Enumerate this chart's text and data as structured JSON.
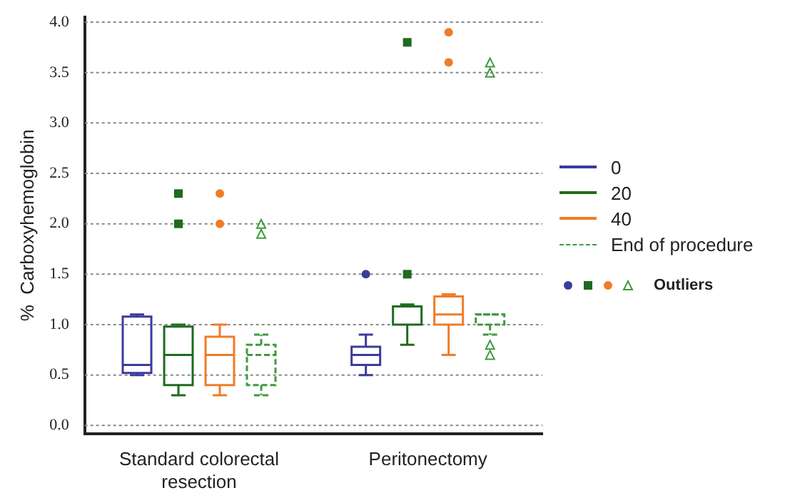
{
  "chart_data": {
    "type": "box",
    "ylabel": "%  Carboxyhemoglobin",
    "categories": [
      "Standard colorectal resection",
      "Peritonectomy"
    ],
    "ylim": [
      -0.08,
      4.05
    ],
    "yticks": [
      {
        "value": 0,
        "label": "0.0"
      },
      {
        "value": 0.5,
        "label": "0.5"
      },
      {
        "value": 1,
        "label": "1.0"
      },
      {
        "value": 1.5,
        "label": "1.5"
      },
      {
        "value": 2,
        "label": "2.0"
      },
      {
        "value": 2.5,
        "label": "2.5"
      },
      {
        "value": 3,
        "label": "3.0"
      },
      {
        "value": 3.5,
        "label": "3.5"
      },
      {
        "value": 4,
        "label": "4.0"
      }
    ],
    "grid": "y",
    "legend": "right",
    "annotations": [
      "Outliers"
    ],
    "series": [
      {
        "name": "0",
        "color": "#3b3b9e",
        "line_style": "solid",
        "marker": "circle",
        "boxes": [
          {
            "low": 0.5,
            "q1": 0.52,
            "median": 0.6,
            "q3": 1.08,
            "high": 1.1
          },
          {
            "low": 0.5,
            "q1": 0.6,
            "median": 0.7,
            "q3": 0.78,
            "high": 0.9,
            "outliers": [
              1.5
            ]
          }
        ]
      },
      {
        "name": "20",
        "color": "#1e6b1e",
        "line_style": "solid",
        "marker": "square",
        "boxes": [
          {
            "low": 0.3,
            "q1": 0.4,
            "median": 0.7,
            "q3": 0.98,
            "high": 1.0,
            "outliers": [
              2.3,
              2.0
            ]
          },
          {
            "low": 0.8,
            "q1": 1.0,
            "median": 1.18,
            "q3": 1.18,
            "high": 1.2,
            "outliers": [
              3.8,
              1.5
            ]
          }
        ]
      },
      {
        "name": "40",
        "color": "#f07c28",
        "line_style": "solid",
        "marker": "circle",
        "boxes": [
          {
            "low": 0.3,
            "q1": 0.4,
            "median": 0.7,
            "q3": 0.88,
            "high": 1.0,
            "outliers": [
              2.3,
              2.0
            ]
          },
          {
            "low": 0.7,
            "q1": 1.0,
            "median": 1.1,
            "q3": 1.28,
            "high": 1.3,
            "outliers": [
              3.9,
              3.6
            ]
          }
        ]
      },
      {
        "name": "End of procedure",
        "color": "#3f9a3f",
        "line_style": "dashed",
        "marker": "triangle",
        "boxes": [
          {
            "low": 0.3,
            "q1": 0.4,
            "median": 0.7,
            "q3": 0.8,
            "high": 0.9,
            "outliers": [
              2.0,
              1.9
            ]
          },
          {
            "low": 0.9,
            "q1": 1.0,
            "median": 1.1,
            "q3": 1.1,
            "high": 1.1,
            "outliers": [
              3.6,
              3.5,
              0.8,
              0.7
            ]
          }
        ]
      }
    ]
  }
}
